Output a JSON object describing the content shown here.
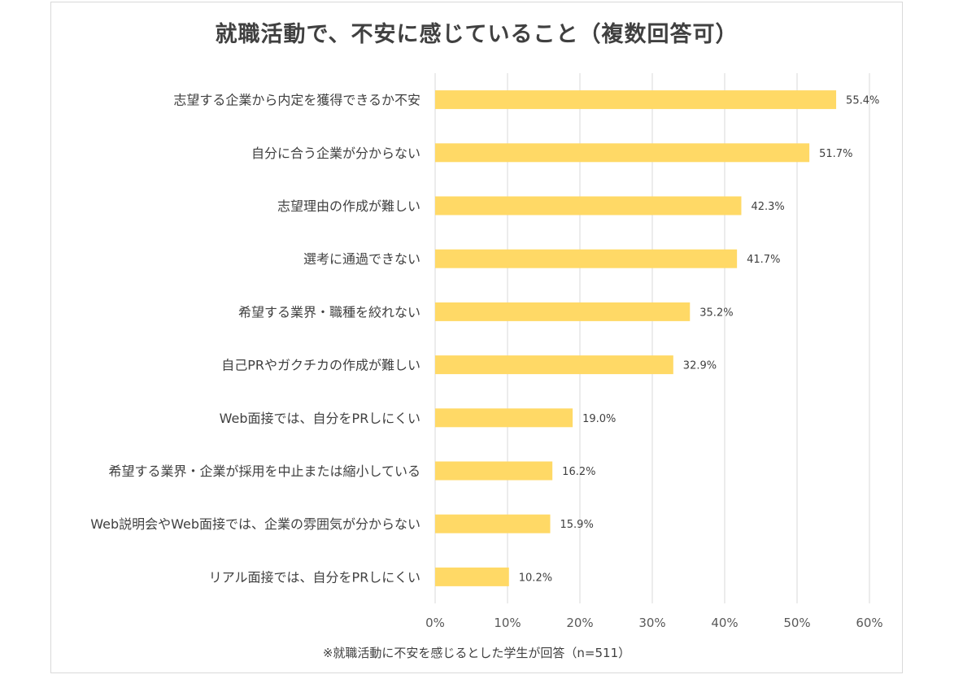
{
  "chart_data": {
    "type": "bar",
    "orientation": "horizontal",
    "title": "就職活動で、不安に感じていること（複数回答可）",
    "note": "※就職活動に不安を感じるとした学生が回答（n=511）",
    "categories": [
      "志望する企業から内定を獲得できるか不安",
      "自分に合う企業が分からない",
      "志望理由の作成が難しい",
      "選考に通過できない",
      "希望する業界・職種を絞れない",
      "自己PRやガクチカの作成が難しい",
      "Web面接では、自分をPRしにくい",
      "希望する業界・企業が採用を中止または縮小している",
      "Web説明会やWeb面接では、企業の雰囲気が分からない",
      "リアル面接では、自分をPRしにくい"
    ],
    "values": [
      55.4,
      51.7,
      42.3,
      41.7,
      35.2,
      32.9,
      19.0,
      16.2,
      15.9,
      10.2
    ],
    "data_labels": [
      "55.4%",
      "51.7%",
      "42.3%",
      "41.7%",
      "35.2%",
      "32.9%",
      "19.0%",
      "16.2%",
      "15.9%",
      "10.2%"
    ],
    "xlim": [
      0,
      60
    ],
    "xticks": [
      "0%",
      "10%",
      "20%",
      "30%",
      "40%",
      "50%",
      "60%"
    ],
    "grid": true,
    "colors": {
      "bar": "#FFD966",
      "grid": "#d9d9d9",
      "text": "#404040"
    }
  }
}
